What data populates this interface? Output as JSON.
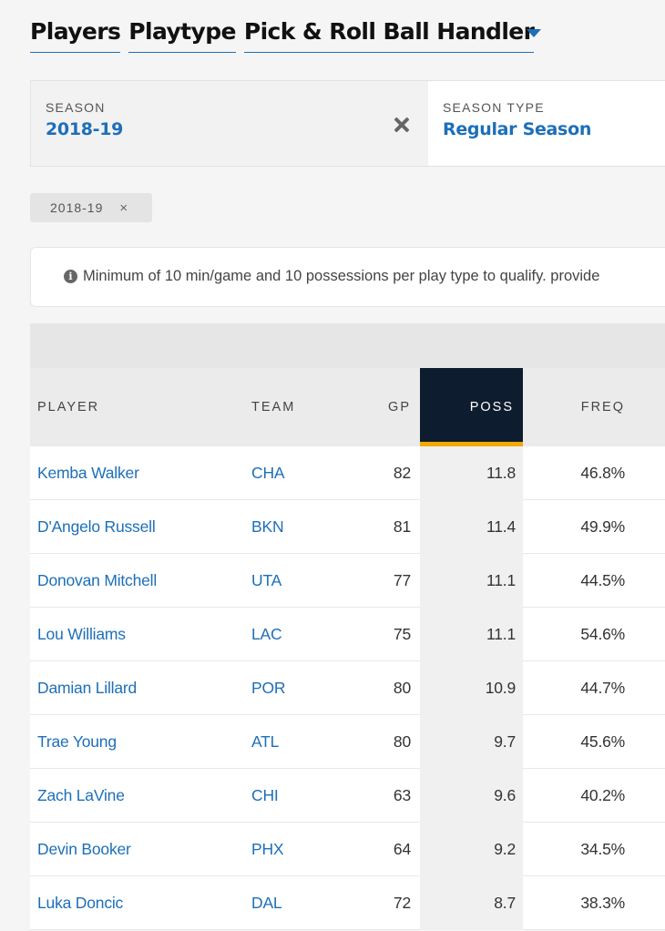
{
  "header": {
    "words": [
      "Players",
      "Playtype",
      "Pick & Roll Ball Handler"
    ]
  },
  "filters": {
    "season": {
      "label": "SEASON",
      "value": "2018-19"
    },
    "season_type": {
      "label": "SEASON TYPE",
      "value": "Regular Season"
    }
  },
  "chip": {
    "label": "2018-19",
    "remove": "×"
  },
  "notice": {
    "text": "Minimum of 10 min/game and 10 possessions per play type to qualify. provide"
  },
  "table": {
    "columns": [
      "PLAYER",
      "TEAM",
      "GP",
      "POSS",
      "FREQ"
    ],
    "rows": [
      {
        "player": "Kemba Walker",
        "team": "CHA",
        "gp": "82",
        "poss": "11.8",
        "freq": "46.8%"
      },
      {
        "player": "D'Angelo Russell",
        "team": "BKN",
        "gp": "81",
        "poss": "11.4",
        "freq": "49.9%"
      },
      {
        "player": "Donovan Mitchell",
        "team": "UTA",
        "gp": "77",
        "poss": "11.1",
        "freq": "44.5%"
      },
      {
        "player": "Lou Williams",
        "team": "LAC",
        "gp": "75",
        "poss": "11.1",
        "freq": "54.6%"
      },
      {
        "player": "Damian Lillard",
        "team": "POR",
        "gp": "80",
        "poss": "10.9",
        "freq": "44.7%"
      },
      {
        "player": "Trae Young",
        "team": "ATL",
        "gp": "80",
        "poss": "9.7",
        "freq": "45.6%"
      },
      {
        "player": "Zach LaVine",
        "team": "CHI",
        "gp": "63",
        "poss": "9.6",
        "freq": "40.2%"
      },
      {
        "player": "Devin Booker",
        "team": "PHX",
        "gp": "64",
        "poss": "9.2",
        "freq": "34.5%"
      },
      {
        "player": "Luka Doncic",
        "team": "DAL",
        "gp": "72",
        "poss": "8.7",
        "freq": "38.3%"
      }
    ]
  },
  "colors": {
    "link": "#1d6fb8",
    "sort_header_bg": "#0d1c2e",
    "sort_underline": "#f2a900"
  }
}
